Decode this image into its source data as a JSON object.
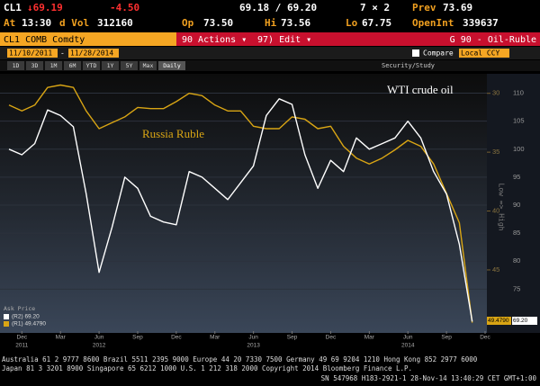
{
  "header": {
    "ticker": "CL1",
    "last": "↓69.19",
    "change": "-4.50",
    "bid_ask": "69.18 / 69.20",
    "size": "7 × 2",
    "prev_label": "Prev",
    "prev": "73.69",
    "at_label": "At",
    "time": "13:30",
    "vol_label": "d Vol",
    "vol": "312160",
    "op_label": "Op",
    "op": "73.50",
    "hi_label": "Hi",
    "hi": "73.56",
    "lo_label": "Lo",
    "lo": "67.75",
    "oi_label": "OpenInt",
    "oi": "339637"
  },
  "toolbar": {
    "security": "CL1 COMB Comdty",
    "actions": "90 Actions ▾",
    "edit": "97) Edit ▾",
    "page": "G 90 - Oil-Ruble",
    "start": "11/10/2011",
    "dash": "-",
    "end": "11/28/2014",
    "compare": "Compare",
    "currency": "Local CCY",
    "ranges": [
      "1D",
      "3D",
      "1M",
      "6M",
      "YTD",
      "1Y",
      "5Y",
      "Max"
    ],
    "period": "Daily",
    "study": "Security/Study"
  },
  "legend": {
    "title": "Ask Price",
    "items": [
      "(R2) 69.20",
      "(R1) 49.4790"
    ]
  },
  "footer": {
    "lines": [
      "Australia 61 2 9777 8600 Brazil 5511 2395 9000 Europe 44 20 7330 7500 Germany 49 69 9204 1210 Hong Kong 852 2977 6000",
      "Japan 81 3 3201 8900         Singapore 65 6212 1000         U.S. 1 212 318 2000         Copyright 2014 Bloomberg Finance L.P.",
      "SN 547968 H183-2921-1 28-Nov-14 13:40:29 CET  GMT+1:00"
    ]
  },
  "chart_data": {
    "type": "line",
    "x": [
      "2011-11",
      "2011-12",
      "2012-01",
      "2012-02",
      "2012-03",
      "2012-04",
      "2012-05",
      "2012-06",
      "2012-07",
      "2012-08",
      "2012-09",
      "2012-10",
      "2012-11",
      "2012-12",
      "2013-01",
      "2013-02",
      "2013-03",
      "2013-04",
      "2013-05",
      "2013-06",
      "2013-07",
      "2013-08",
      "2013-09",
      "2013-10",
      "2013-11",
      "2013-12",
      "2014-01",
      "2014-02",
      "2014-03",
      "2014-04",
      "2014-05",
      "2014-06",
      "2014-07",
      "2014-08",
      "2014-09",
      "2014-10",
      "2014-11"
    ],
    "series": [
      {
        "name": "Russia Ruble",
        "color": "#d9a514",
        "axis": "y2",
        "values": [
          31.0,
          31.5,
          31.0,
          29.5,
          29.3,
          29.5,
          31.5,
          33.0,
          32.5,
          32.0,
          31.2,
          31.3,
          31.3,
          30.7,
          30.0,
          30.2,
          31.0,
          31.5,
          31.5,
          32.8,
          33.0,
          33.0,
          32.0,
          32.2,
          33.0,
          32.8,
          34.5,
          35.5,
          36.0,
          35.5,
          34.8,
          34.0,
          34.5,
          36.0,
          38.5,
          41.0,
          49.479
        ]
      },
      {
        "name": "WTI crude oil",
        "color": "#ffffff",
        "values": [
          100,
          99,
          101,
          107,
          106,
          104,
          92,
          78,
          86,
          95,
          93,
          88,
          87,
          86.5,
          96,
          95,
          93,
          91,
          94,
          97,
          106,
          109,
          108,
          99,
          93,
          98,
          96,
          102,
          100,
          101,
          102,
          105,
          102,
          96,
          92,
          83,
          69.2
        ]
      }
    ],
    "end_labels": [
      "49.4790",
      "69.20"
    ],
    "xlim": [
      "2011-11",
      "2014-12"
    ],
    "xticks": [
      {
        "value": "2011-12",
        "label": "Dec"
      },
      {
        "value": "2012-03",
        "label": "Mar"
      },
      {
        "value": "2012-06",
        "label": "Jun"
      },
      {
        "value": "2012-09",
        "label": "Sep"
      },
      {
        "value": "2012-12",
        "label": "Dec"
      },
      {
        "value": "2013-03",
        "label": "Mar"
      },
      {
        "value": "2013-06",
        "label": "Jun"
      },
      {
        "value": "2013-09",
        "label": "Sep"
      },
      {
        "value": "2013-12",
        "label": "Dec"
      },
      {
        "value": "2014-03",
        "label": "Mar"
      },
      {
        "value": "2014-06",
        "label": "Jun"
      },
      {
        "value": "2014-09",
        "label": "Sep"
      },
      {
        "value": "2014-12",
        "label": "Dec"
      }
    ],
    "xyears": [
      {
        "value": "2011-12",
        "label": "2011"
      },
      {
        "value": "2012-06",
        "label": "2012"
      },
      {
        "value": "2013-06",
        "label": "2013"
      },
      {
        "value": "2014-06",
        "label": "2014"
      }
    ],
    "ylim": [
      67.5,
      112.5
    ],
    "yticks": [
      75,
      80,
      85,
      90,
      95,
      100,
      105,
      110
    ],
    "y2lim": [
      50.2,
      28.8
    ],
    "y2ticks": [
      30,
      35,
      40,
      45
    ],
    "y2_label": "Low => High",
    "grid": true
  }
}
